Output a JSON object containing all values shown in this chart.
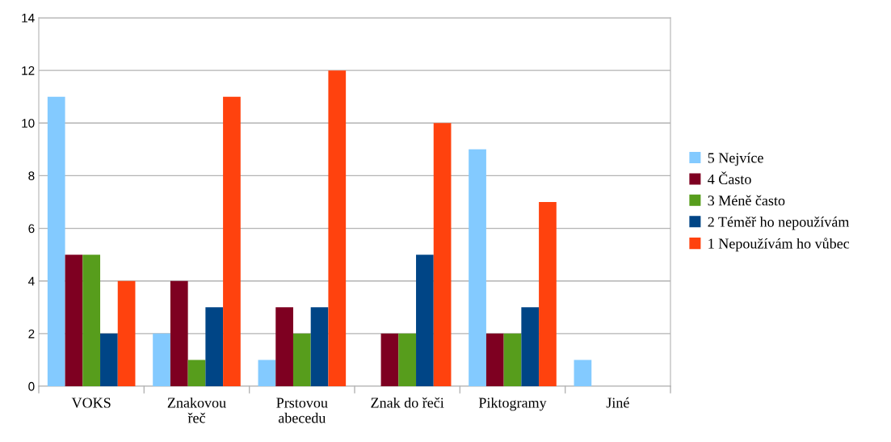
{
  "chart_data": {
    "type": "bar",
    "categories": [
      "VOKS",
      "Znakovou\nřeč",
      "Prstovou\nabecedu",
      "Znak do řeči",
      "Piktogramy",
      "Jiné"
    ],
    "series": [
      {
        "name": "5 Nejvíce",
        "color": "#83caff",
        "values": [
          11,
          2,
          1,
          0,
          9,
          1
        ]
      },
      {
        "name": "4 Často",
        "color": "#7e0021",
        "values": [
          5,
          4,
          3,
          2,
          2,
          0
        ]
      },
      {
        "name": "3 Méně často",
        "color": "#579d1c",
        "values": [
          5,
          1,
          2,
          2,
          2,
          0
        ]
      },
      {
        "name": "2 Téměř ho nepoužívám",
        "color": "#004586",
        "values": [
          2,
          3,
          3,
          5,
          3,
          0
        ]
      },
      {
        "name": "1 Nepoužívám ho vůbec",
        "color": "#ff420e",
        "values": [
          4,
          11,
          12,
          10,
          7,
          0
        ]
      }
    ],
    "ylim": [
      0,
      14
    ],
    "yticks": [
      0,
      2,
      4,
      6,
      8,
      10,
      12,
      14
    ],
    "grid": "y",
    "legend": "right"
  }
}
